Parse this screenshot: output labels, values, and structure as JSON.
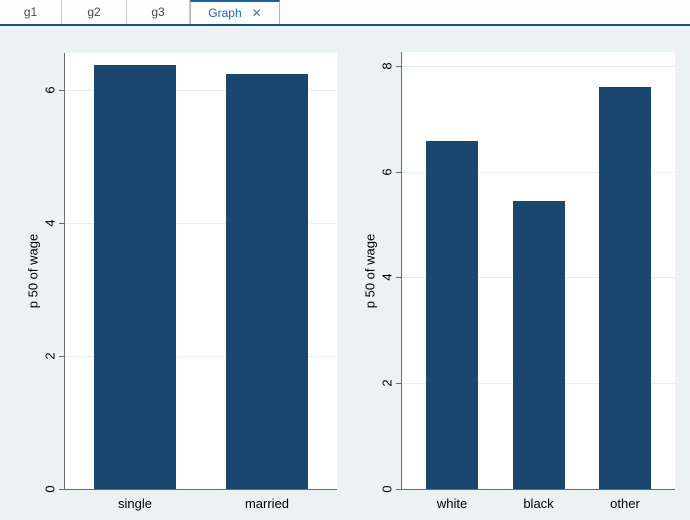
{
  "tabs": [
    {
      "label": "g1"
    },
    {
      "label": "g2"
    },
    {
      "label": "g3"
    },
    {
      "label": "Graph",
      "active": true
    }
  ],
  "icons": {
    "close": "✕"
  },
  "colors": {
    "bar_fill": "#1a476f",
    "window_background": "#eaf2f3",
    "plot_background": "#ffffff",
    "gridline": "#e4eef0",
    "axis_line": "#6b6b6b",
    "tab_accent_blue": "#1c5f9e",
    "tab_active_text": "#1565bf",
    "tabbar_underline": "#155378"
  },
  "chart_data": [
    {
      "type": "bar",
      "categories": [
        "single",
        "married"
      ],
      "values": [
        6.38,
        6.24
      ],
      "title": "",
      "xlabel": "",
      "ylabel": "p 50 of wage",
      "yticks": [
        0,
        2,
        4,
        6
      ],
      "ylim": [
        0,
        6.56
      ],
      "grid": true,
      "legend": "none"
    },
    {
      "type": "bar",
      "categories": [
        "white",
        "black",
        "other"
      ],
      "values": [
        6.58,
        5.45,
        7.6
      ],
      "title": "",
      "xlabel": "",
      "ylabel": "p 50 of wage",
      "yticks": [
        0,
        2,
        4,
        6,
        8
      ],
      "ylim": [
        0,
        8.26
      ],
      "grid": true,
      "legend": "none"
    }
  ]
}
